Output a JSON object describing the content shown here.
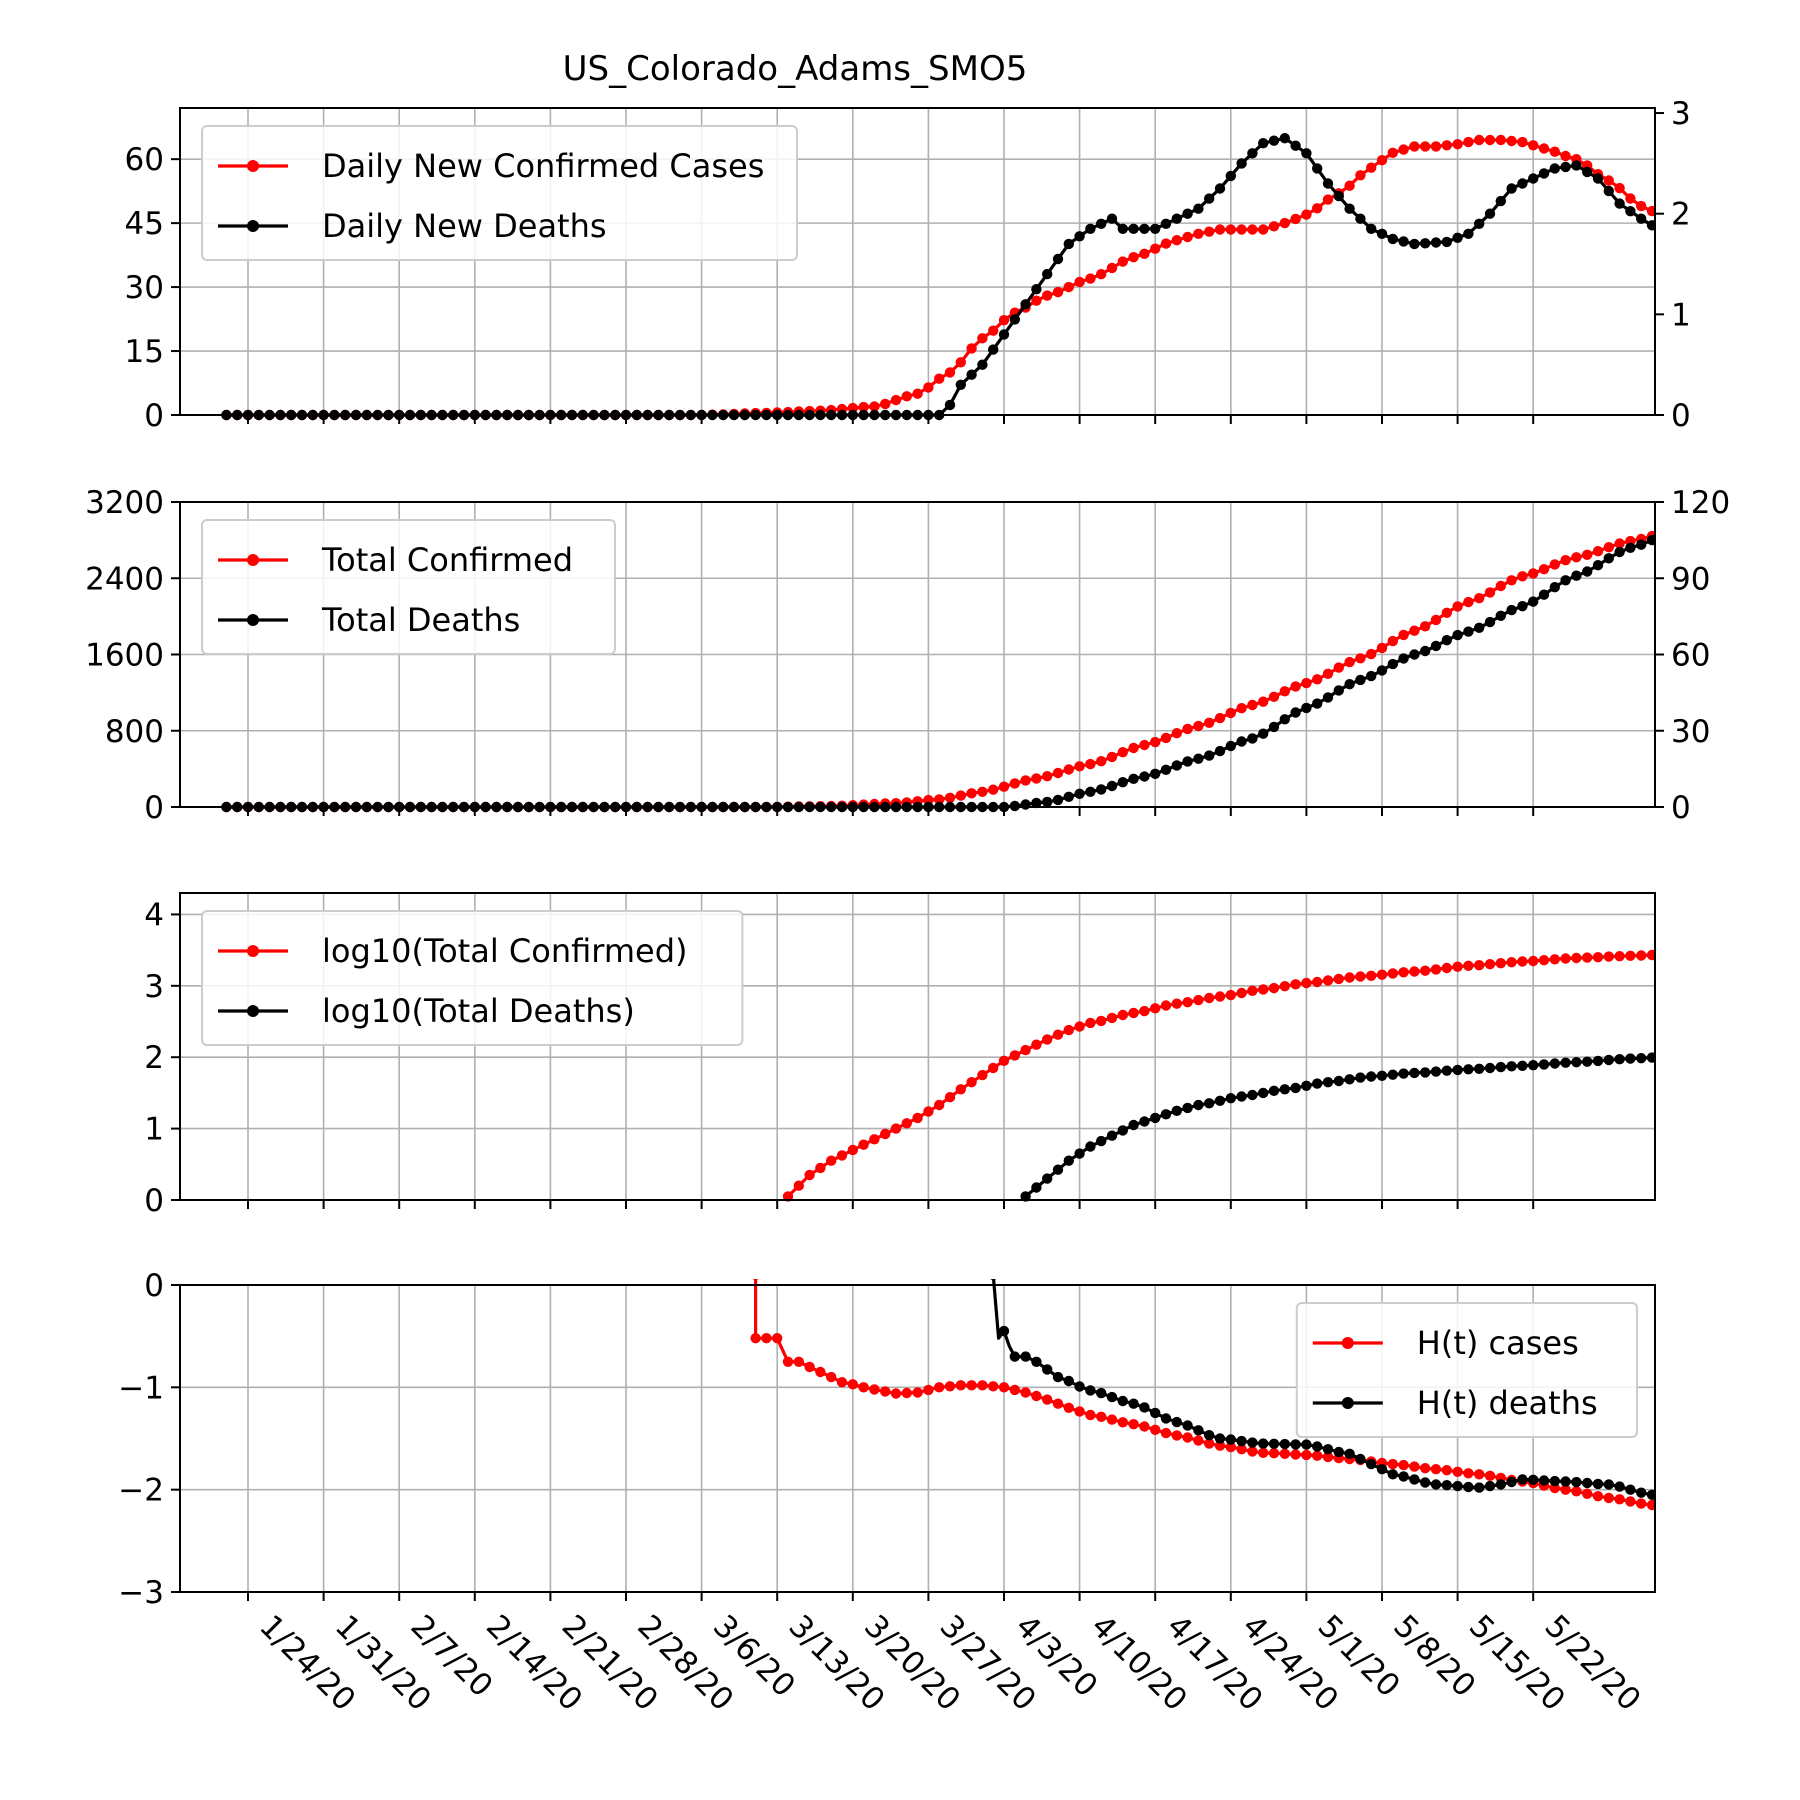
{
  "figure": {
    "title": "US_Colorado_Adams_SMO5",
    "x_tick_labels": [
      "1/24/20",
      "1/31/20",
      "2/7/20",
      "2/14/20",
      "2/21/20",
      "2/28/20",
      "3/6/20",
      "3/13/20",
      "3/20/20",
      "3/27/20",
      "4/3/20",
      "4/10/20",
      "4/17/20",
      "4/24/20",
      "5/1/20",
      "5/8/20",
      "5/15/20",
      "5/22/20"
    ]
  },
  "colors": {
    "cases": "#ff0000",
    "deaths": "#000000",
    "grid": "#b0b0b0",
    "axes": "#000000"
  },
  "chart_data": [
    {
      "id": "daily",
      "type": "line",
      "title": "US_Colorado_Adams_SMO5",
      "x_start_date": "1/22/20",
      "x_days": 118,
      "ylim_left": [
        0,
        72
      ],
      "yticks_left": [
        0,
        15,
        30,
        45,
        60
      ],
      "ytick_labels_left": [
        "0",
        "15",
        "30",
        "45",
        "60"
      ],
      "ylim_right": [
        0,
        3.05
      ],
      "yticks_right": [
        0,
        1,
        2,
        3
      ],
      "ytick_labels_right": [
        "0",
        "1",
        "2",
        "3"
      ],
      "legend": [
        "Daily New Confirmed Cases",
        "Daily New Deaths"
      ],
      "legend_loc": "upper left",
      "series": [
        {
          "name": "Daily New Confirmed Cases",
          "axis": "left",
          "color": "#ff0000",
          "keys": [
            [
              0,
              0
            ],
            [
              44,
              0
            ],
            [
              50,
              0.5
            ],
            [
              55,
              1
            ],
            [
              60,
              2
            ],
            [
              64,
              5
            ],
            [
              67,
              10
            ],
            [
              70,
              18
            ],
            [
              73,
              24
            ],
            [
              76,
              28
            ],
            [
              80,
              32
            ],
            [
              84,
              37
            ],
            [
              88,
              41
            ],
            [
              90,
              42.5
            ],
            [
              92,
              43.5
            ],
            [
              94,
              43.5
            ],
            [
              96,
              43.5
            ],
            [
              98,
              45
            ],
            [
              100,
              47
            ],
            [
              103,
              52
            ],
            [
              106,
              58
            ],
            [
              108,
              61.5
            ],
            [
              110,
              63
            ],
            [
              112,
              63
            ],
            [
              114,
              63.5
            ],
            [
              116,
              64.5
            ],
            [
              118,
              64.5
            ],
            [
              120,
              64
            ],
            [
              122,
              62.5
            ],
            [
              125,
              60
            ],
            [
              128,
              55
            ],
            [
              131,
              49
            ],
            [
              134,
              45
            ],
            [
              137,
              42
            ],
            [
              140,
              41
            ],
            [
              143,
              41
            ]
          ]
        },
        {
          "name": "Daily New Deaths",
          "axis": "right",
          "color": "#000000",
          "keys": [
            [
              0,
              0
            ],
            [
              66,
              0
            ],
            [
              67,
              0.1
            ],
            [
              68,
              0.3
            ],
            [
              70,
              0.5
            ],
            [
              72,
              0.8
            ],
            [
              74,
              1.1
            ],
            [
              76,
              1.4
            ],
            [
              78,
              1.7
            ],
            [
              80,
              1.85
            ],
            [
              82,
              1.95
            ],
            [
              83,
              1.85
            ],
            [
              86,
              1.85
            ],
            [
              88,
              1.95
            ],
            [
              90,
              2.05
            ],
            [
              92,
              2.25
            ],
            [
              94,
              2.5
            ],
            [
              96,
              2.7
            ],
            [
              98,
              2.75
            ],
            [
              100,
              2.6
            ],
            [
              102,
              2.3
            ],
            [
              104,
              2.05
            ],
            [
              106,
              1.85
            ],
            [
              108,
              1.75
            ],
            [
              110,
              1.7
            ],
            [
              113,
              1.72
            ],
            [
              115,
              1.8
            ],
            [
              117,
              2.0
            ],
            [
              119,
              2.25
            ],
            [
              121,
              2.35
            ],
            [
              123,
              2.45
            ],
            [
              125,
              2.48
            ],
            [
              127,
              2.35
            ],
            [
              129,
              2.1
            ],
            [
              131,
              1.95
            ],
            [
              133,
              1.82
            ],
            [
              135,
              1.8
            ],
            [
              137,
              1.72
            ],
            [
              138,
              1.85
            ],
            [
              140,
              1.68
            ],
            [
              141,
              1.78
            ],
            [
              142,
              1.7
            ]
          ]
        }
      ]
    },
    {
      "id": "totals",
      "type": "line",
      "ylim_left": [
        0,
        3200
      ],
      "yticks_left": [
        0,
        800,
        1600,
        2400,
        3200
      ],
      "ytick_labels_left": [
        "0",
        "800",
        "1600",
        "2400",
        "3200"
      ],
      "ylim_right": [
        0,
        120
      ],
      "yticks_right": [
        0,
        30,
        60,
        90,
        120
      ],
      "ytick_labels_right": [
        "0",
        "30",
        "60",
        "90",
        "120"
      ],
      "legend": [
        "Total Confirmed",
        "Total Deaths"
      ],
      "legend_loc": "upper left",
      "series": [
        {
          "name": "Total Confirmed",
          "axis": "left",
          "color": "#ff0000",
          "keys": [
            [
              0,
              0
            ],
            [
              50,
              0
            ],
            [
              56,
              10
            ],
            [
              62,
              40
            ],
            [
              66,
              80
            ],
            [
              70,
              160
            ],
            [
              75,
              300
            ],
            [
              80,
              450
            ],
            [
              85,
              650
            ],
            [
              90,
              850
            ],
            [
              95,
              1070
            ],
            [
              100,
              1300
            ],
            [
              105,
              1560
            ],
            [
              110,
              1850
            ],
            [
              115,
              2150
            ],
            [
              120,
              2420
            ],
            [
              125,
              2620
            ],
            [
              130,
              2790
            ],
            [
              135,
              2930
            ],
            [
              140,
              3000
            ],
            [
              143,
              3000
            ]
          ]
        },
        {
          "name": "Total Deaths",
          "axis": "right",
          "color": "#000000",
          "keys": [
            [
              0,
              0
            ],
            [
              72,
              0
            ],
            [
              76,
              2
            ],
            [
              80,
              6
            ],
            [
              85,
              12
            ],
            [
              90,
              19
            ],
            [
              95,
              27
            ],
            [
              100,
              39
            ],
            [
              105,
              50
            ],
            [
              110,
              60
            ],
            [
              115,
              69
            ],
            [
              120,
              79
            ],
            [
              125,
              91
            ],
            [
              130,
              102
            ],
            [
              135,
              110
            ],
            [
              142,
              117
            ]
          ]
        }
      ]
    },
    {
      "id": "log",
      "type": "line",
      "ylim_left": [
        0,
        4.3
      ],
      "yticks_left": [
        0,
        1,
        2,
        3,
        4
      ],
      "ytick_labels_left": [
        "0",
        "1",
        "2",
        "3",
        "4"
      ],
      "legend": [
        "log10(Total Confirmed)",
        "log10(Total Deaths)"
      ],
      "legend_loc": "upper left",
      "series": [
        {
          "name": "log10(Total Confirmed)",
          "axis": "left",
          "color": "#ff0000",
          "keys": [
            [
              52,
              0.05
            ],
            [
              54,
              0.35
            ],
            [
              56,
              0.55
            ],
            [
              58,
              0.7
            ],
            [
              60,
              0.85
            ],
            [
              62,
              1.0
            ],
            [
              64,
              1.15
            ],
            [
              66,
              1.33
            ],
            [
              68,
              1.55
            ],
            [
              70,
              1.75
            ],
            [
              72,
              1.95
            ],
            [
              74,
              2.1
            ],
            [
              76,
              2.25
            ],
            [
              78,
              2.38
            ],
            [
              80,
              2.48
            ],
            [
              84,
              2.62
            ],
            [
              88,
              2.75
            ],
            [
              92,
              2.85
            ],
            [
              96,
              2.95
            ],
            [
              100,
              3.04
            ],
            [
              105,
              3.13
            ],
            [
              110,
              3.2
            ],
            [
              115,
              3.28
            ],
            [
              120,
              3.34
            ],
            [
              125,
              3.39
            ],
            [
              130,
              3.42
            ],
            [
              135,
              3.45
            ],
            [
              140,
              3.46
            ],
            [
              143,
              3.47
            ]
          ]
        },
        {
          "name": "log10(Total Deaths)",
          "axis": "left",
          "color": "#000000",
          "keys": [
            [
              74,
              0.05
            ],
            [
              76,
              0.3
            ],
            [
              78,
              0.55
            ],
            [
              80,
              0.75
            ],
            [
              82,
              0.9
            ],
            [
              84,
              1.05
            ],
            [
              86,
              1.15
            ],
            [
              88,
              1.25
            ],
            [
              90,
              1.33
            ],
            [
              94,
              1.45
            ],
            [
              98,
              1.55
            ],
            [
              102,
              1.65
            ],
            [
              106,
              1.73
            ],
            [
              110,
              1.78
            ],
            [
              115,
              1.83
            ],
            [
              120,
              1.88
            ],
            [
              125,
              1.93
            ],
            [
              130,
              1.98
            ],
            [
              135,
              2.02
            ],
            [
              140,
              2.05
            ],
            [
              143,
              2.06
            ]
          ]
        }
      ]
    },
    {
      "id": "hurst",
      "type": "line",
      "ylim_left": [
        -3,
        0
      ],
      "yticks_left": [
        -3,
        -2,
        -1,
        0
      ],
      "ytick_labels_left": [
        "−3",
        "−2",
        "−1",
        "0"
      ],
      "legend": [
        "H(t) cases",
        "H(t) deaths"
      ],
      "legend_loc": "upper right",
      "series": [
        {
          "name": "H(t) cases",
          "axis": "left",
          "color": "#ff0000",
          "keys": [
            [
              49,
              0.1
            ],
            [
              49,
              -0.52
            ],
            [
              50,
              -0.52
            ],
            [
              51,
              -0.52
            ],
            [
              52,
              -0.75
            ],
            [
              53,
              -0.75
            ],
            [
              55,
              -0.85
            ],
            [
              57,
              -0.95
            ],
            [
              60,
              -1.02
            ],
            [
              62,
              -1.06
            ],
            [
              64,
              -1.05
            ],
            [
              66,
              -1.0
            ],
            [
              68,
              -0.98
            ],
            [
              70,
              -0.98
            ],
            [
              72,
              -1.0
            ],
            [
              74,
              -1.05
            ],
            [
              76,
              -1.12
            ],
            [
              78,
              -1.2
            ],
            [
              80,
              -1.27
            ],
            [
              84,
              -1.36
            ],
            [
              88,
              -1.47
            ],
            [
              92,
              -1.57
            ],
            [
              96,
              -1.64
            ],
            [
              100,
              -1.66
            ],
            [
              104,
              -1.7
            ],
            [
              108,
              -1.75
            ],
            [
              112,
              -1.8
            ],
            [
              116,
              -1.85
            ],
            [
              120,
              -1.92
            ],
            [
              124,
              -2.0
            ],
            [
              128,
              -2.08
            ],
            [
              132,
              -2.15
            ],
            [
              136,
              -2.2
            ],
            [
              140,
              -2.22
            ],
            [
              142,
              -2.22
            ]
          ]
        },
        {
          "name": "H(t) deaths",
          "axis": "left",
          "color": "#000000",
          "keys": [
            [
              71,
              0.1
            ],
            [
              71.5,
              -0.52
            ],
            [
              72,
              -0.45
            ],
            [
              72.5,
              -0.6
            ],
            [
              73,
              -0.7
            ],
            [
              74,
              -0.7
            ],
            [
              75,
              -0.75
            ],
            [
              77,
              -0.9
            ],
            [
              80,
              -1.03
            ],
            [
              84,
              -1.16
            ],
            [
              88,
              -1.34
            ],
            [
              92,
              -1.5
            ],
            [
              96,
              -1.55
            ],
            [
              100,
              -1.56
            ],
            [
              104,
              -1.65
            ],
            [
              106,
              -1.75
            ],
            [
              108,
              -1.85
            ],
            [
              112,
              -1.95
            ],
            [
              116,
              -1.98
            ],
            [
              118,
              -1.95
            ],
            [
              120,
              -1.9
            ],
            [
              124,
              -1.92
            ],
            [
              128,
              -1.95
            ],
            [
              132,
              -2.05
            ],
            [
              134,
              -2.15
            ],
            [
              138,
              -2.2
            ],
            [
              141,
              -2.2
            ]
          ]
        }
      ]
    }
  ]
}
